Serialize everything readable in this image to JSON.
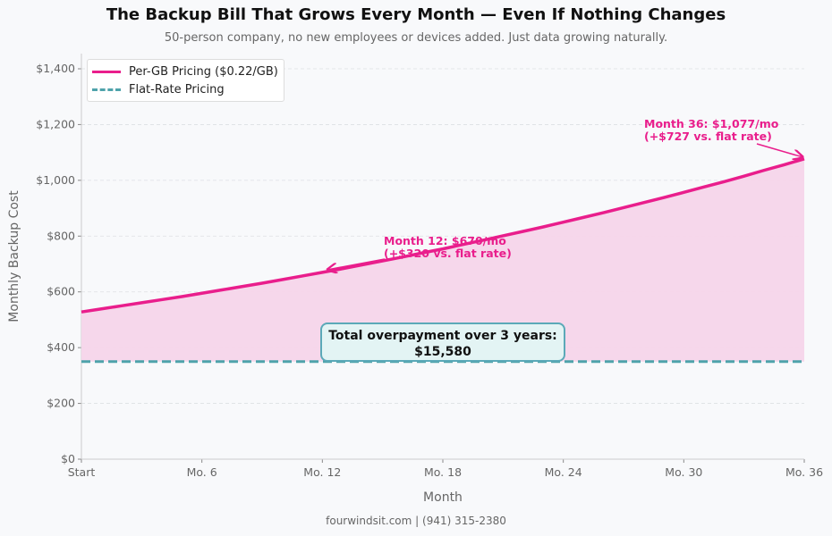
{
  "title": "The Backup Bill That Grows Every Month — Even If Nothing Changes",
  "subtitle": "50-person company, no new employees or devices added. Just data growing naturally.",
  "footer": "fourwindsit.com  |  (941) 315-2380",
  "colors": {
    "per_gb": "#e91e8c",
    "flat": "#4fa3ab",
    "fill": "#f6d5ea"
  },
  "chart_data": {
    "type": "line",
    "xlabel": "Month",
    "ylabel": "Monthly Backup Cost",
    "xlim": [
      0,
      36
    ],
    "ylim": [
      0,
      1450
    ],
    "grid": true,
    "legend_position": "top-left",
    "x_ticks": [
      {
        "v": 0,
        "label": "Start"
      },
      {
        "v": 6,
        "label": "Mo. 6"
      },
      {
        "v": 12,
        "label": "Mo. 12"
      },
      {
        "v": 18,
        "label": "Mo. 18"
      },
      {
        "v": 24,
        "label": "Mo. 24"
      },
      {
        "v": 30,
        "label": "Mo. 30"
      },
      {
        "v": 36,
        "label": "Mo. 36"
      }
    ],
    "y_ticks": [
      {
        "v": 0,
        "label": "$0"
      },
      {
        "v": 200,
        "label": "$200"
      },
      {
        "v": 400,
        "label": "$400"
      },
      {
        "v": 600,
        "label": "$600"
      },
      {
        "v": 800,
        "label": "$800"
      },
      {
        "v": 1000,
        "label": "$1,000"
      },
      {
        "v": 1200,
        "label": "$1,200"
      },
      {
        "v": 1400,
        "label": "$1,400"
      }
    ],
    "x": [
      0,
      1,
      2,
      3,
      4,
      5,
      6,
      7,
      8,
      9,
      10,
      11,
      12,
      13,
      14,
      15,
      16,
      17,
      18,
      19,
      20,
      21,
      22,
      23,
      24,
      25,
      26,
      27,
      28,
      29,
      30,
      31,
      32,
      33,
      34,
      35,
      36
    ],
    "series": [
      {
        "name": "Per-GB Pricing ($0.22/GB)",
        "style": "solid",
        "values": [
          528,
          539,
          550,
          561,
          572,
          583,
          595,
          607,
          619,
          631,
          644,
          657,
          670,
          683,
          697,
          711,
          725,
          740,
          754,
          770,
          785,
          801,
          817,
          833,
          850,
          867,
          884,
          902,
          920,
          938,
          957,
          976,
          995,
          1015,
          1036,
          1056,
          1077
        ]
      },
      {
        "name": "Flat-Rate Pricing",
        "style": "dashed",
        "values": [
          350,
          350,
          350,
          350,
          350,
          350,
          350,
          350,
          350,
          350,
          350,
          350,
          350,
          350,
          350,
          350,
          350,
          350,
          350,
          350,
          350,
          350,
          350,
          350,
          350,
          350,
          350,
          350,
          350,
          350,
          350,
          350,
          350,
          350,
          350,
          350,
          350
        ]
      }
    ],
    "annotations": [
      {
        "line1": "Month 12: $670/mo",
        "line2": "(+$320 vs. flat rate)",
        "x": 12,
        "y": 670
      },
      {
        "line1": "Month 36: $1,077/mo",
        "line2": "(+$727 vs. flat rate)",
        "x": 36,
        "y": 1077
      }
    ],
    "summary_box": {
      "line1": "Total overpayment over 3 years:",
      "line2": "$15,580"
    }
  }
}
